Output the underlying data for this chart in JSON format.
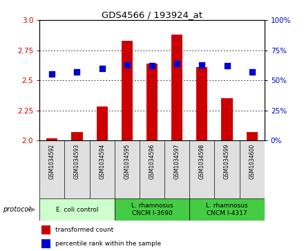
{
  "title": "GDS4566 / 193924_at",
  "samples": [
    "GSM1034592",
    "GSM1034593",
    "GSM1034594",
    "GSM1034595",
    "GSM1034596",
    "GSM1034597",
    "GSM1034598",
    "GSM1034599",
    "GSM1034600"
  ],
  "transformed_counts": [
    2.02,
    2.07,
    2.28,
    2.83,
    2.64,
    2.88,
    2.61,
    2.35,
    2.07
  ],
  "percentile_ranks": [
    55,
    57,
    60,
    63,
    62,
    64,
    63,
    62,
    57
  ],
  "ylim_left": [
    2.0,
    3.0
  ],
  "ylim_right": [
    0,
    100
  ],
  "yticks_left": [
    2.0,
    2.25,
    2.5,
    2.75,
    3.0
  ],
  "yticks_right": [
    0,
    25,
    50,
    75,
    100
  ],
  "bar_color": "#cc0000",
  "dot_color": "#0000cc",
  "group_e_coli_color": "#ccffcc",
  "group_lrham_color": "#44cc44",
  "groups": [
    {
      "label": "E. coli control",
      "start": 0,
      "end": 2,
      "color": "#ccffcc"
    },
    {
      "label": "L. rhamnosus\nCNCM I-3690",
      "start": 3,
      "end": 5,
      "color": "#44cc44"
    },
    {
      "label": "L. rhamnosus\nCNCM I-4317",
      "start": 6,
      "end": 8,
      "color": "#44cc44"
    }
  ],
  "left_tick_color": "#cc0000",
  "right_tick_color": "#0000cc",
  "bar_width": 0.45,
  "dot_size": 30,
  "legend_items": [
    {
      "color": "#cc0000",
      "label": "transformed count"
    },
    {
      "color": "#0000cc",
      "label": "percentile rank within the sample"
    }
  ]
}
